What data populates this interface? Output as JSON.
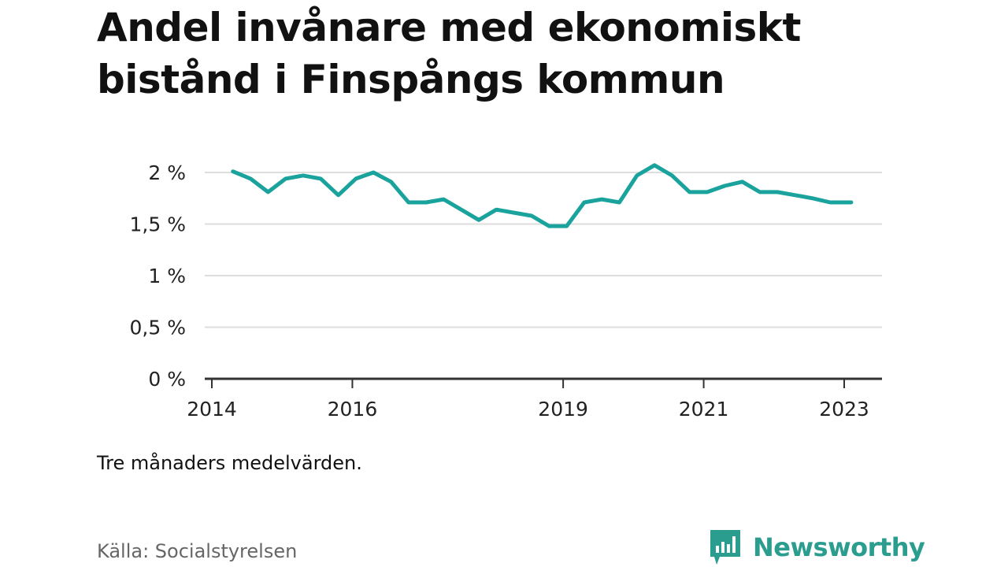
{
  "title": "Andel invånare med ekonomiskt bistånd i Finspångs kommun",
  "note": "Tre månaders medelvärden.",
  "source": "Källa: Socialstyrelsen",
  "brand": {
    "name": "Newsworthy",
    "icon": "newsworthy-logo-icon",
    "color": "#2a9d8f"
  },
  "colors": {
    "line": "#1aa39d",
    "grid": "#dddddd",
    "axis": "#333333"
  },
  "chart_data": {
    "type": "line",
    "title": "Andel invånare med ekonomiskt bistånd i Finspångs kommun",
    "xlabel": "",
    "ylabel": "",
    "x_ticks": [
      "2014",
      "2016",
      "2019",
      "2021",
      "2023"
    ],
    "x_tick_values": [
      2014.0,
      2016.0,
      2019.0,
      2021.0,
      2023.0
    ],
    "xlim": [
      2014.0,
      2023.5
    ],
    "y_ticks": [
      "0 %",
      "0,5 %",
      "1 %",
      "1,5 %",
      "2 %"
    ],
    "y_tick_values": [
      0,
      0.5,
      1,
      1.5,
      2
    ],
    "ylim": [
      0,
      2
    ],
    "grid": true,
    "legend": "none",
    "series": [
      {
        "values": [
          {
            "x": 2014.3,
            "y": 2.01
          },
          {
            "x": 2014.55,
            "y": 1.94
          },
          {
            "x": 2014.8,
            "y": 1.81
          },
          {
            "x": 2015.05,
            "y": 1.94
          },
          {
            "x": 2015.3,
            "y": 1.97
          },
          {
            "x": 2015.55,
            "y": 1.94
          },
          {
            "x": 2015.8,
            "y": 1.78
          },
          {
            "x": 2016.05,
            "y": 1.94
          },
          {
            "x": 2016.3,
            "y": 2.0
          },
          {
            "x": 2016.55,
            "y": 1.91
          },
          {
            "x": 2016.8,
            "y": 1.71
          },
          {
            "x": 2017.05,
            "y": 1.71
          },
          {
            "x": 2017.3,
            "y": 1.74
          },
          {
            "x": 2017.55,
            "y": 1.64
          },
          {
            "x": 2017.8,
            "y": 1.54
          },
          {
            "x": 2018.05,
            "y": 1.64
          },
          {
            "x": 2018.3,
            "y": 1.61
          },
          {
            "x": 2018.55,
            "y": 1.58
          },
          {
            "x": 2018.8,
            "y": 1.48
          },
          {
            "x": 2019.05,
            "y": 1.48
          },
          {
            "x": 2019.3,
            "y": 1.71
          },
          {
            "x": 2019.55,
            "y": 1.74
          },
          {
            "x": 2019.8,
            "y": 1.71
          },
          {
            "x": 2020.05,
            "y": 1.97
          },
          {
            "x": 2020.3,
            "y": 2.07
          },
          {
            "x": 2020.55,
            "y": 1.97
          },
          {
            "x": 2020.8,
            "y": 1.81
          },
          {
            "x": 2021.05,
            "y": 1.81
          },
          {
            "x": 2021.3,
            "y": 1.87
          },
          {
            "x": 2021.55,
            "y": 1.91
          },
          {
            "x": 2021.8,
            "y": 1.81
          },
          {
            "x": 2022.05,
            "y": 1.81
          },
          {
            "x": 2022.3,
            "y": 1.78
          },
          {
            "x": 2022.55,
            "y": 1.75
          },
          {
            "x": 2022.8,
            "y": 1.71
          },
          {
            "x": 2023.1,
            "y": 1.71
          }
        ]
      }
    ]
  }
}
